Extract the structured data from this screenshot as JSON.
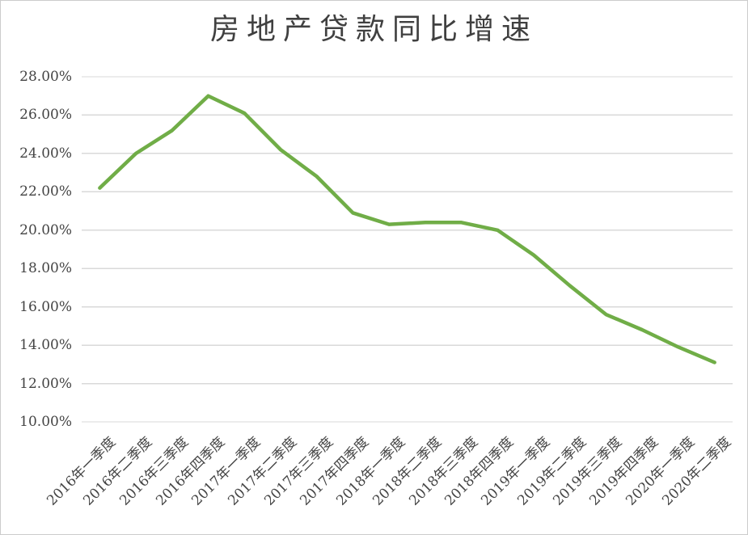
{
  "chart_data": {
    "type": "line",
    "title": "房地产贷款同比增速",
    "categories": [
      "2016年一季度",
      "2016年二季度",
      "2016年三季度",
      "2016年四季度",
      "2017年一季度",
      "2017年二季度",
      "2017年三季度",
      "2017年四季度",
      "2018年一季度",
      "2018年二季度",
      "2018年三季度",
      "2018年四季度",
      "2019年一季度",
      "2019年二季度",
      "2019年三季度",
      "2019年四季度",
      "2020年一季度",
      "2020年二季度"
    ],
    "values": [
      22.2,
      24.0,
      25.2,
      27.0,
      26.1,
      24.2,
      22.8,
      20.9,
      20.3,
      20.4,
      20.4,
      20.0,
      18.7,
      17.1,
      15.6,
      14.8,
      13.9,
      13.1
    ],
    "value_unit": "%",
    "xlabel": "",
    "ylabel": "",
    "ylim": [
      10,
      28
    ],
    "y_ticks": [
      10,
      12,
      14,
      16,
      18,
      20,
      22,
      24,
      26,
      28
    ],
    "y_tick_labels": [
      "10.00%",
      "12.00%",
      "14.00%",
      "16.00%",
      "18.00%",
      "20.00%",
      "22.00%",
      "24.00%",
      "26.00%",
      "28.00%"
    ],
    "grid": true,
    "legend_position": "none",
    "colors": {
      "line": "#70AD47",
      "grid": "#D9D9D9",
      "border": "#CCCCCC",
      "title_text": "#404040",
      "axis_text": "#444444",
      "background": "#FFFFFF"
    }
  }
}
